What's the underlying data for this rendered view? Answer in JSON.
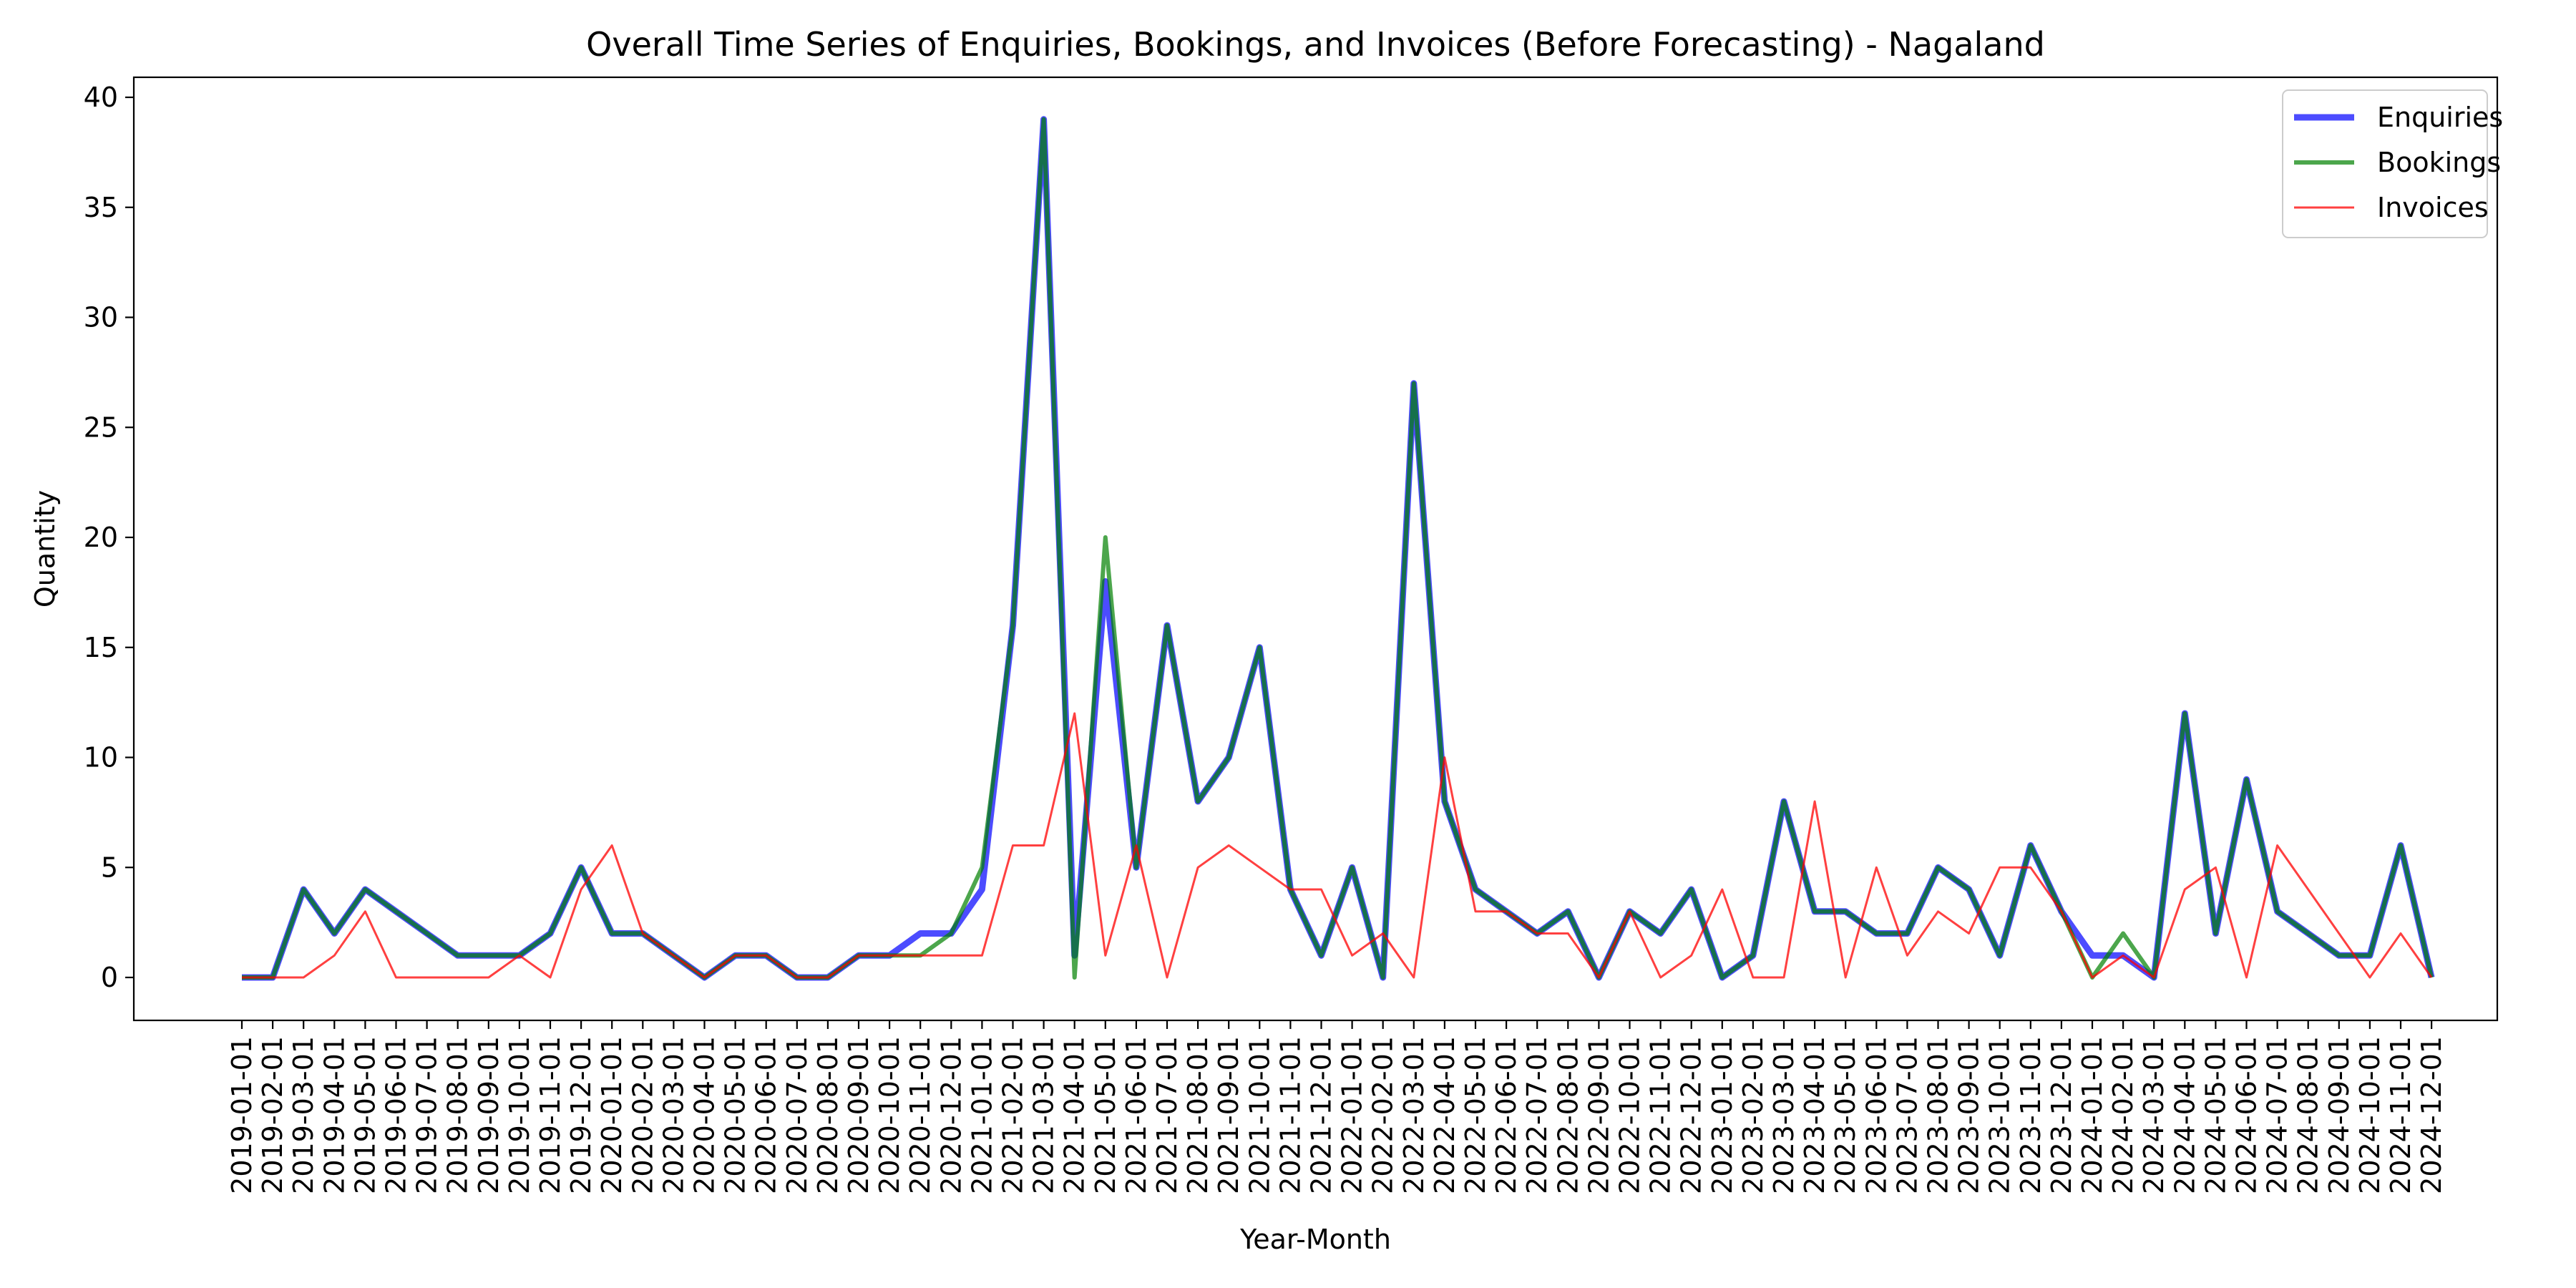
{
  "chart_data": {
    "type": "line",
    "title": "Overall Time Series of Enquiries, Bookings, and Invoices (Before Forecasting) - Nagaland",
    "xlabel": "Year-Month",
    "ylabel": "Quantity",
    "ylim": [
      -2,
      41
    ],
    "yticks": [
      0,
      5,
      10,
      15,
      20,
      25,
      30,
      35,
      40
    ],
    "grid": false,
    "legend_position": "top-right",
    "x": [
      "2019-01-01",
      "2019-02-01",
      "2019-03-01",
      "2019-04-01",
      "2019-05-01",
      "2019-06-01",
      "2019-07-01",
      "2019-08-01",
      "2019-09-01",
      "2019-10-01",
      "2019-11-01",
      "2019-12-01",
      "2020-01-01",
      "2020-02-01",
      "2020-03-01",
      "2020-04-01",
      "2020-05-01",
      "2020-06-01",
      "2020-07-01",
      "2020-08-01",
      "2020-09-01",
      "2020-10-01",
      "2020-11-01",
      "2020-12-01",
      "2021-01-01",
      "2021-02-01",
      "2021-03-01",
      "2021-04-01",
      "2021-05-01",
      "2021-06-01",
      "2021-07-01",
      "2021-08-01",
      "2021-09-01",
      "2021-10-01",
      "2021-11-01",
      "2021-12-01",
      "2022-01-01",
      "2022-02-01",
      "2022-03-01",
      "2022-04-01",
      "2022-05-01",
      "2022-06-01",
      "2022-07-01",
      "2022-08-01",
      "2022-09-01",
      "2022-10-01",
      "2022-11-01",
      "2022-12-01",
      "2023-01-01",
      "2023-02-01",
      "2023-03-01",
      "2023-04-01",
      "2023-05-01",
      "2023-06-01",
      "2023-07-01",
      "2023-08-01",
      "2023-09-01",
      "2023-10-01",
      "2023-11-01",
      "2023-12-01",
      "2024-01-01",
      "2024-02-01",
      "2024-03-01",
      "2024-04-01",
      "2024-05-01",
      "2024-06-01",
      "2024-07-01",
      "2024-08-01",
      "2024-09-01",
      "2024-10-01",
      "2024-11-01",
      "2024-12-01"
    ],
    "series": [
      {
        "name": "Enquiries",
        "color": "#0000ff",
        "values": [
          0,
          0,
          4,
          2,
          4,
          3,
          2,
          1,
          1,
          1,
          2,
          5,
          2,
          2,
          1,
          0,
          1,
          1,
          0,
          0,
          1,
          1,
          2,
          2,
          4,
          16,
          39,
          1,
          18,
          5,
          16,
          8,
          10,
          15,
          4,
          1,
          5,
          0,
          27,
          8,
          4,
          3,
          2,
          3,
          0,
          3,
          2,
          4,
          0,
          1,
          8,
          3,
          3,
          2,
          2,
          5,
          4,
          1,
          6,
          3,
          1,
          1,
          0,
          12,
          2,
          9,
          3,
          2,
          1,
          1,
          6,
          0
        ]
      },
      {
        "name": "Bookings",
        "color": "#008000",
        "values": [
          0,
          0,
          4,
          2,
          4,
          3,
          2,
          1,
          1,
          1,
          2,
          5,
          2,
          2,
          1,
          0,
          1,
          1,
          0,
          0,
          1,
          1,
          1,
          2,
          5,
          16,
          39,
          0,
          20,
          5,
          16,
          8,
          10,
          15,
          4,
          1,
          5,
          0,
          27,
          8,
          4,
          3,
          2,
          3,
          0,
          3,
          2,
          4,
          0,
          1,
          8,
          3,
          3,
          2,
          2,
          5,
          4,
          1,
          6,
          3,
          0,
          2,
          0,
          12,
          2,
          9,
          3,
          2,
          1,
          1,
          6,
          0
        ]
      },
      {
        "name": "Invoices",
        "color": "#ff0000",
        "values": [
          0,
          0,
          0,
          1,
          3,
          0,
          0,
          0,
          0,
          1,
          0,
          4,
          6,
          2,
          1,
          0,
          1,
          1,
          0,
          0,
          1,
          1,
          1,
          1,
          1,
          6,
          6,
          12,
          1,
          6,
          0,
          5,
          6,
          5,
          4,
          4,
          1,
          2,
          0,
          10,
          3,
          3,
          2,
          2,
          0,
          3,
          0,
          1,
          4,
          0,
          0,
          8,
          0,
          5,
          1,
          3,
          2,
          5,
          5,
          3,
          0,
          1,
          0,
          4,
          5,
          0,
          6,
          4,
          2,
          0,
          2,
          0
        ]
      }
    ]
  }
}
